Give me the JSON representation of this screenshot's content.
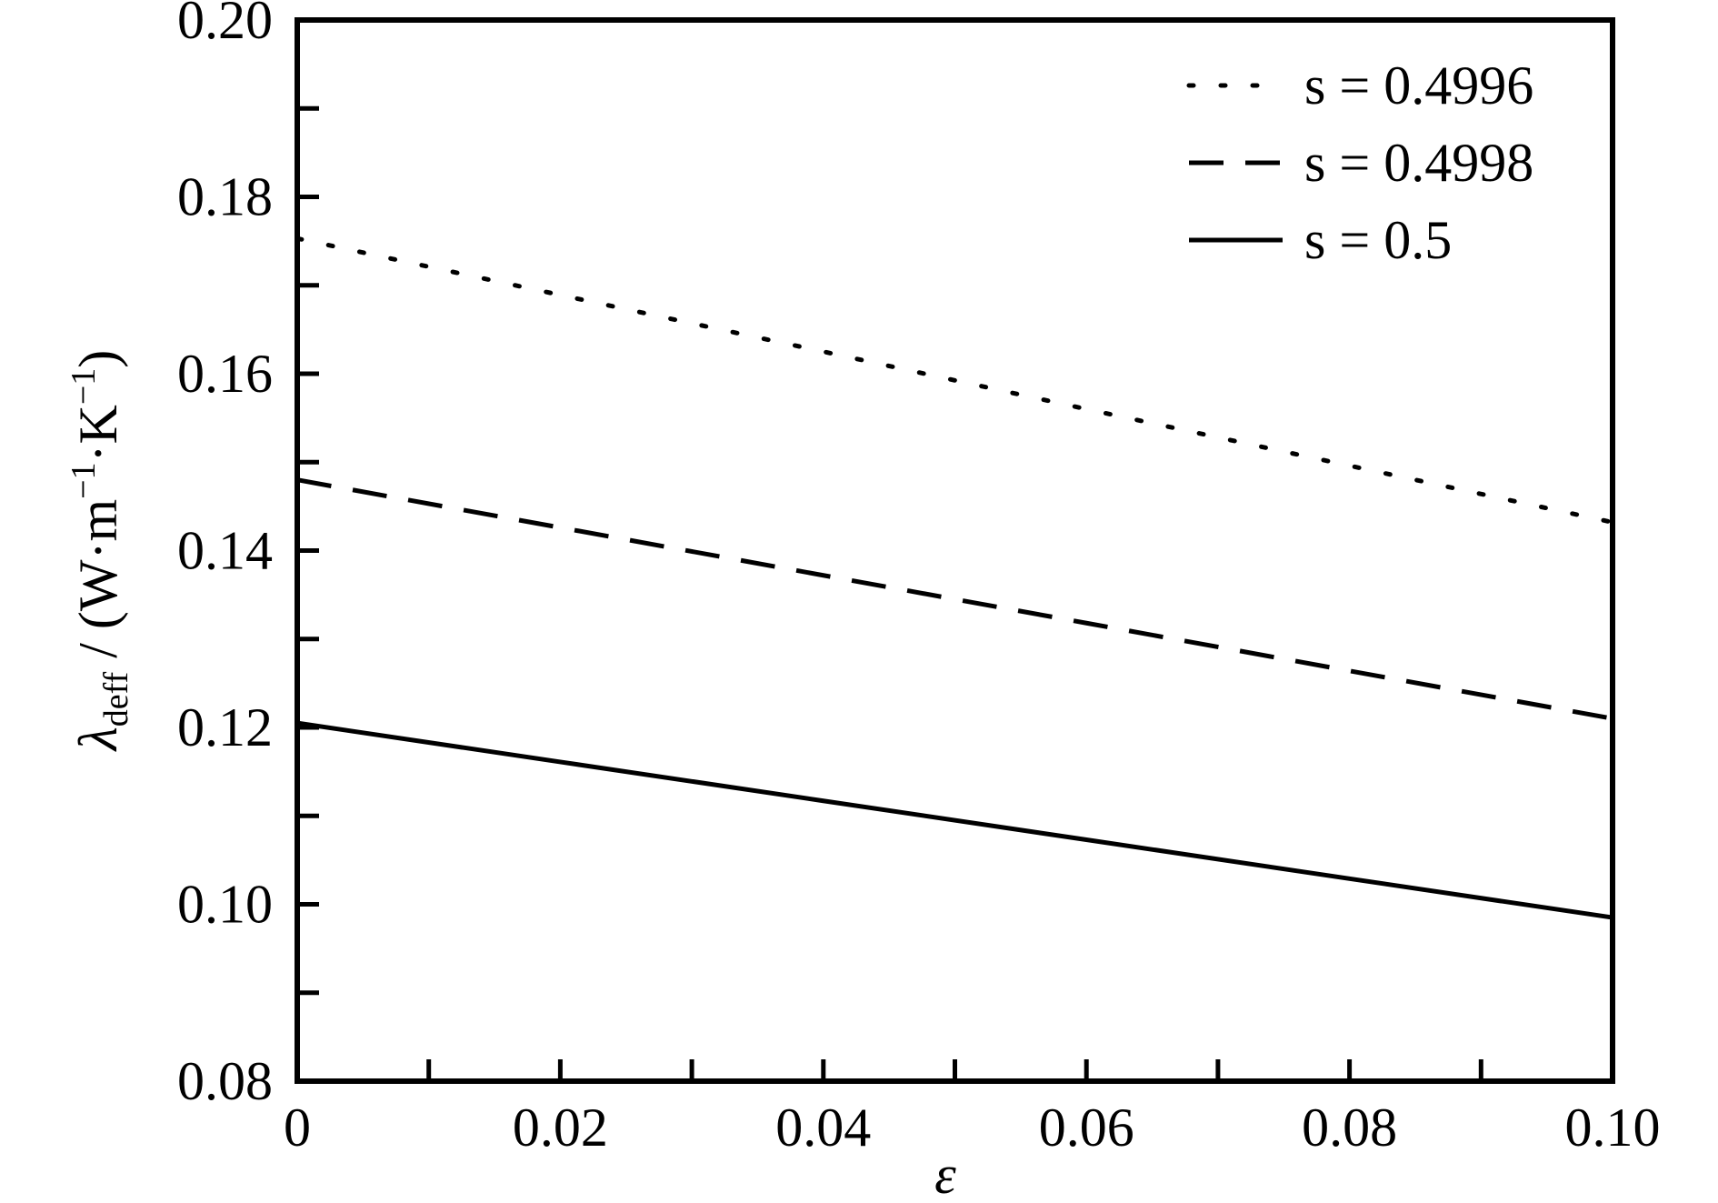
{
  "chart_data": {
    "type": "line",
    "ylabel": {
      "symbol": "λ",
      "subscript": "deff",
      "unit": " / (W·m",
      "exp1": "−1",
      "mid": "·K",
      "exp2": "−1",
      "close": ")"
    },
    "xlabel": "ε",
    "x": [
      0,
      0.02,
      0.04,
      0.06,
      0.08,
      0.1
    ],
    "series": [
      {
        "name": "s = 0.4996",
        "color": "#000000",
        "dash": "dotted",
        "values": [
          0.1753,
          0.1689,
          0.1625,
          0.156,
          0.1496,
          0.1432
        ]
      },
      {
        "name": "s = 0.4998",
        "color": "#000000",
        "dash": "dashed",
        "values": [
          0.148,
          0.1426,
          0.1372,
          0.1318,
          0.1264,
          0.121
        ]
      },
      {
        "name": "s = 0.5",
        "color": "#000000",
        "dash": "solid",
        "values": [
          0.1205,
          0.1161,
          0.1117,
          0.1073,
          0.1029,
          0.0985
        ]
      }
    ],
    "xlim": [
      0,
      0.1
    ],
    "xticks": [
      0,
      0.02,
      0.04,
      0.06,
      0.08,
      {
        "value": 0.1,
        "label": "0.10"
      }
    ],
    "x_minor_ticks": [
      0.01,
      0.03,
      0.05,
      0.07,
      0.09
    ],
    "ylim": [
      0.08,
      0.2
    ],
    "yticks": [
      0.08,
      {
        "value": 0.1,
        "label": "0.10"
      },
      0.12,
      0.14,
      0.16,
      0.18,
      {
        "value": 0.2,
        "label": "0.20"
      }
    ],
    "y_minor_ticks": [
      0.09,
      0.11,
      0.13,
      0.15,
      0.17,
      0.19
    ],
    "grid": false,
    "legend": "upper right"
  }
}
